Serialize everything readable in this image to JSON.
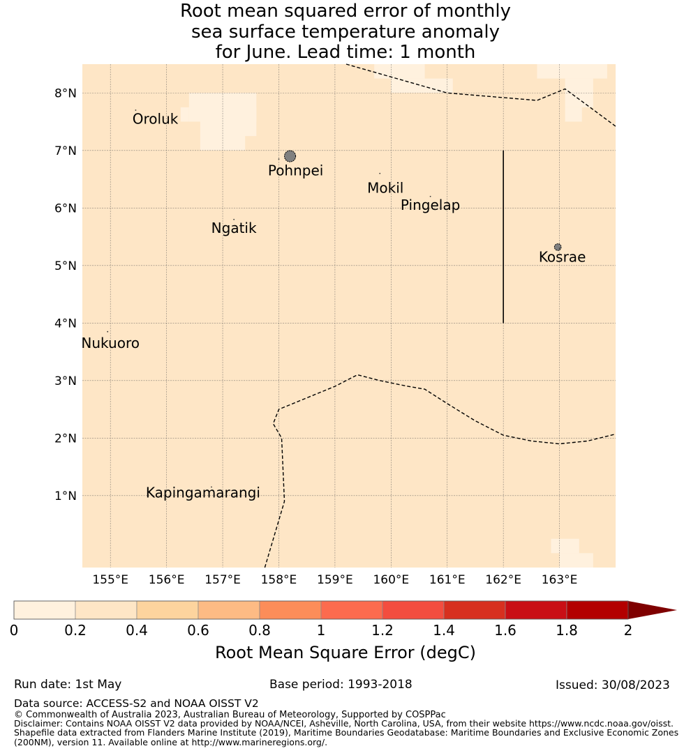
{
  "title": {
    "line1": "Root mean squared error of monthly",
    "line2": "sea surface temperature anomaly",
    "line3": "for June. Lead time: 1 month"
  },
  "map": {
    "lon_range": [
      154.5,
      164.0
    ],
    "lat_range": [
      -0.25,
      8.5
    ],
    "lon_ticks": [
      {
        "value": 155,
        "label": "155°E"
      },
      {
        "value": 156,
        "label": "156°E"
      },
      {
        "value": 157,
        "label": "157°E"
      },
      {
        "value": 158,
        "label": "158°E"
      },
      {
        "value": 159,
        "label": "159°E"
      },
      {
        "value": 160,
        "label": "160°E"
      },
      {
        "value": 161,
        "label": "161°E"
      },
      {
        "value": 162,
        "label": "162°E"
      },
      {
        "value": 163,
        "label": "163°E"
      }
    ],
    "lat_ticks": [
      {
        "value": 1,
        "label": "1°N"
      },
      {
        "value": 2,
        "label": "2°N"
      },
      {
        "value": 3,
        "label": "3°N"
      },
      {
        "value": 4,
        "label": "4°N"
      },
      {
        "value": 5,
        "label": "5°N"
      },
      {
        "value": 6,
        "label": "6°N"
      },
      {
        "value": 7,
        "label": "7°N"
      },
      {
        "value": 8,
        "label": "8°N"
      }
    ],
    "background_bin": "0.2-0.4",
    "low_error_cells": [
      {
        "lon0": 156.4,
        "lat0": 7.5,
        "lon1": 157.0,
        "lat1": 8.0
      },
      {
        "lon0": 156.6,
        "lat0": 7.0,
        "lon1": 157.4,
        "lat1": 7.75
      },
      {
        "lon0": 157.0,
        "lat0": 7.25,
        "lon1": 157.6,
        "lat1": 8.0
      },
      {
        "lon0": 157.1,
        "lat0": 7.75,
        "lon1": 157.6,
        "lat1": 7.5
      },
      {
        "lon0": 156.25,
        "lat0": 7.5,
        "lon1": 156.4,
        "lat1": 7.75
      },
      {
        "lon0": 160.0,
        "lat0": 8.0,
        "lon1": 161.1,
        "lat1": 8.25
      },
      {
        "lon0": 159.7,
        "lat0": 8.25,
        "lon1": 160.6,
        "lat1": 8.5
      },
      {
        "lon0": 163.1,
        "lat0": 7.75,
        "lon1": 163.6,
        "lat1": 8.25
      },
      {
        "lon0": 162.6,
        "lat0": 8.25,
        "lon1": 163.85,
        "lat1": 8.5
      },
      {
        "lon0": 163.1,
        "lat0": 7.5,
        "lon1": 163.4,
        "lat1": 7.75
      },
      {
        "lon0": 163.0,
        "lat0": -0.25,
        "lon1": 163.6,
        "lat1": 0.0
      },
      {
        "lon0": 162.85,
        "lat0": 0.0,
        "lon1": 163.35,
        "lat1": 0.25
      }
    ],
    "places": [
      {
        "name": "Oroluk",
        "lon": 155.8,
        "lat": 7.55,
        "dot_lon": 155.45,
        "dot_lat": 7.7
      },
      {
        "name": "Pohnpei",
        "lon": 158.3,
        "lat": 6.65,
        "dot_lon": 158.0,
        "dot_lat": 6.85
      },
      {
        "name": "Mokil",
        "lon": 159.9,
        "lat": 6.35,
        "dot_lon": 159.8,
        "dot_lat": 6.6
      },
      {
        "name": "Pingelap",
        "lon": 160.7,
        "lat": 6.05,
        "dot_lon": 160.7,
        "dot_lat": 6.2
      },
      {
        "name": "Ngatik",
        "lon": 157.2,
        "lat": 5.65,
        "dot_lon": 157.2,
        "dot_lat": 5.8
      },
      {
        "name": "Kosrae",
        "lon": 163.05,
        "lat": 5.15,
        "dot_lon": 163.0,
        "dot_lat": 5.3
      },
      {
        "name": "Nukuoro",
        "lon": 155.0,
        "lat": 3.65,
        "dot_lon": 154.95,
        "dot_lat": 3.85
      },
      {
        "name": "Kapingamarangi",
        "lon": 156.65,
        "lat": 1.05,
        "dot_lon": 156.8,
        "dot_lat": 1.15
      }
    ],
    "islands": [
      {
        "name": "Pohnpei",
        "lon": 158.2,
        "lat": 6.9,
        "r_deg": 0.1
      },
      {
        "name": "Kosrae",
        "lon": 162.97,
        "lat": 5.32,
        "r_deg": 0.06
      }
    ],
    "eez_boundaries": [
      [
        [
          159.2,
          8.5
        ],
        [
          161.0,
          8.0
        ],
        [
          162.6,
          7.87
        ],
        [
          163.1,
          8.07
        ],
        [
          164.0,
          7.42
        ]
      ],
      [
        [
          157.75,
          -0.25
        ],
        [
          158.1,
          0.9
        ],
        [
          158.05,
          2.0
        ],
        [
          157.9,
          2.25
        ],
        [
          158.0,
          2.5
        ],
        [
          158.5,
          2.7
        ],
        [
          159.0,
          2.9
        ],
        [
          159.4,
          3.1
        ],
        [
          159.8,
          3.0
        ],
        [
          160.3,
          2.9
        ],
        [
          160.6,
          2.85
        ],
        [
          161.0,
          2.6
        ],
        [
          161.5,
          2.3
        ],
        [
          162.0,
          2.05
        ],
        [
          162.5,
          1.95
        ],
        [
          163.0,
          1.9
        ],
        [
          163.5,
          1.95
        ],
        [
          164.0,
          2.07
        ]
      ]
    ],
    "solid_line": [
      [
        162.0,
        7.0
      ],
      [
        162.0,
        4.0
      ]
    ]
  },
  "colorbar": {
    "title": "Root Mean Square Error (degC)",
    "levels": [
      0,
      0.2,
      0.4,
      0.6,
      0.8,
      1,
      1.2,
      1.4,
      1.6,
      1.8,
      2
    ],
    "tick_labels": [
      "0",
      "0.2",
      "0.4",
      "0.6",
      "0.8",
      "1",
      "1.2",
      "1.4",
      "1.6",
      "1.8",
      "2"
    ],
    "colors": [
      "#fff1de",
      "#fee6c6",
      "#fdd49e",
      "#fdbb84",
      "#fc8d59",
      "#fc6b4e",
      "#f34d3f",
      "#d7301f",
      "#c90f15",
      "#b30000"
    ],
    "extend_color": "#7f0000",
    "extend": "max"
  },
  "footer": {
    "run_date": "Run date: 1st May",
    "base_period": "Base period: 1993-2018",
    "issued": "Issued: 30/08/2023",
    "data_source": "Data source: ACCESS-S2 and NOAA OISST V2",
    "copyright": "© Commonwealth of Australia 2023, Australian Bureau of Meteorology, Supported by COSPPac",
    "disclaimer1": "Disclaimer: Contains NOAA OISST V2 data provided by NOAA/NCEI, Asheville, North Carolina, USA, from their website https://www.ncdc.noaa.gov/oisst.",
    "disclaimer2": "Shapefile data extracted from Flanders Marine Institute (2019), Maritime Boundaries Geodatabase: Maritime Boundaries and Exclusive Economic Zones",
    "disclaimer3": "(200NM), version 11. Available online at http://www.marineregions.org/."
  }
}
